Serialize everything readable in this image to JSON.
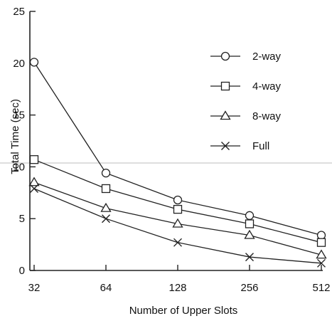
{
  "chart_data": {
    "type": "line",
    "title": "",
    "xlabel": "Number of Upper Slots",
    "ylabel": "Total Time (sec)",
    "x": [
      32,
      64,
      128,
      256,
      512
    ],
    "x_scale": "log2",
    "ylim": [
      0,
      25
    ],
    "yticks": [
      0,
      5,
      10,
      15,
      20,
      25
    ],
    "grid": false,
    "legend_position": "top-right",
    "series": [
      {
        "name": "2-way",
        "marker": "circle",
        "values": [
          20.1,
          9.4,
          6.8,
          5.3,
          3.4
        ]
      },
      {
        "name": "4-way",
        "marker": "square",
        "values": [
          10.7,
          7.9,
          5.9,
          4.5,
          2.7
        ]
      },
      {
        "name": "8-way",
        "marker": "triangle",
        "values": [
          8.5,
          6.0,
          4.5,
          3.4,
          1.5
        ]
      },
      {
        "name": "Full",
        "marker": "x",
        "values": [
          7.9,
          5.0,
          2.7,
          1.3,
          0.7
        ]
      }
    ],
    "colors": {
      "line": "#222222",
      "reference_line": "#bdbdbd"
    }
  }
}
